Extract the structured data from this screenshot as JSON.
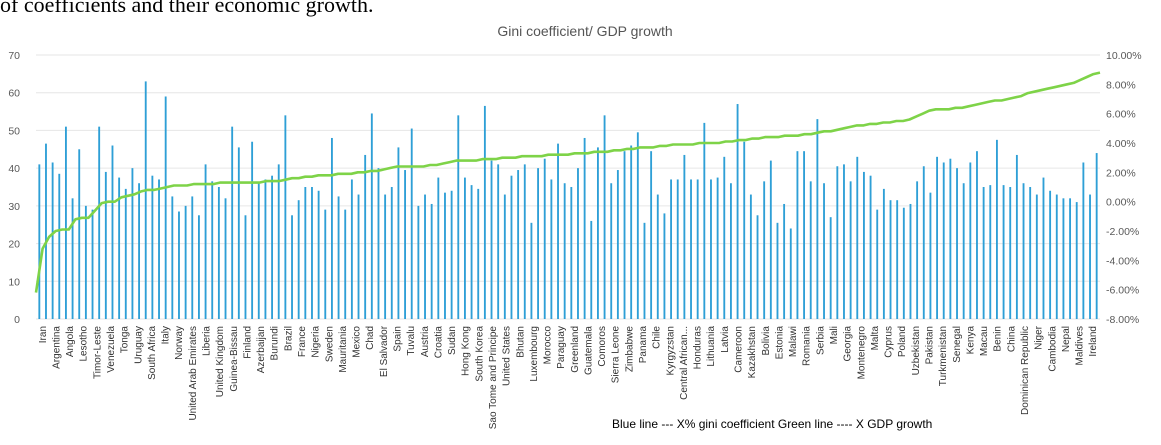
{
  "caption_fragment": "of coefficients and their economic growth.",
  "chart_data": {
    "type": "bar",
    "title": "Gini coefficient/ GDP growth",
    "annotation": "Blue line ---  X% gini coefficient  Green line ---- X GDP growth",
    "y_left": {
      "ticks": [
        0,
        10,
        20,
        30,
        40,
        50,
        60,
        70
      ],
      "range": [
        0,
        70
      ]
    },
    "y_right": {
      "ticks": [
        "-8.00%",
        "-6.00%",
        "-4.00%",
        "-2.00%",
        "0.00%",
        "2.00%",
        "4.00%",
        "6.00%",
        "8.00%",
        "10.00%"
      ],
      "range": [
        -8,
        10
      ]
    },
    "labeled_categories": [
      "Iran",
      "Argentina",
      "Angola",
      "Lesotho",
      "Timor-Leste",
      "Venezuela",
      "Tonga",
      "Uruguay",
      "South Africa",
      "Italy",
      "Norway",
      "United Arab Emirates",
      "Liberia",
      "United Kingdom",
      "Guinea-Bissau",
      "Finland",
      "Azerbaijan",
      "Burundi",
      "Brazil",
      "France",
      "Nigeria",
      "Sweden",
      "Mauritania",
      "Mexico",
      "Chad",
      "El Salvador",
      "Spain",
      "Tuvalu",
      "Austria",
      "Croatia",
      "Sudan",
      "Hong Kong",
      "South Korea",
      "Sao Tome and Principe",
      "United States",
      "Bhutan",
      "Luxembourg",
      "Morocco",
      "Paraguay",
      "Greenland",
      "Guatemala",
      "Comoros",
      "Sierra Leone",
      "Zimbabwe",
      "Panama",
      "Chile",
      "Kyrgyzstan",
      "Central African...",
      "Honduras",
      "Lithuania",
      "Latvia",
      "Cameroon",
      "Kazakhstan",
      "Bolivia",
      "Estonia",
      "Malawi",
      "Romania",
      "Serbia",
      "Mali",
      "Georgia",
      "Montenegro",
      "Malta",
      "Cyprus",
      "Poland",
      "Uzbekistan",
      "Pakistan",
      "Turkmenistan",
      "Senegal",
      "Kenya",
      "Macau",
      "Benin",
      "China",
      "Dominican Republic",
      "Niger",
      "Cambodia",
      "Nepal",
      "Maldives",
      "Ireland"
    ],
    "gini_values": [
      41,
      46.5,
      41.5,
      38.5,
      51,
      32,
      45,
      30,
      29,
      51,
      39,
      46,
      37.5,
      34.5,
      40,
      36,
      63,
      38,
      37,
      59,
      32.5,
      28.5,
      30,
      32.5,
      27.5,
      41,
      36.5,
      35,
      32,
      51,
      45.5,
      27.5,
      47,
      36,
      37,
      38,
      41,
      54,
      27.5,
      31.5,
      35,
      35,
      34,
      29,
      48,
      32.5,
      29,
      37,
      33,
      43.5,
      54.5,
      40,
      33,
      35,
      45.5,
      39.5,
      50.5,
      30,
      33,
      30.5,
      37.5,
      33.5,
      34,
      54,
      37.5,
      35.5,
      34.5,
      56.5,
      42,
      41,
      33,
      38,
      39.5,
      41,
      25.5,
      40,
      42.5,
      37,
      46.5,
      36,
      35,
      40,
      48,
      26,
      45.5,
      54,
      36,
      39.5,
      44.5,
      46,
      49.5,
      25.5,
      44.5,
      33,
      28,
      37,
      37,
      43.5,
      37,
      37,
      52,
      37,
      37.5,
      43,
      36,
      57,
      47,
      33,
      27.5,
      36.5,
      42,
      25.5,
      30.5,
      24,
      44.5,
      44.5,
      36.5,
      53,
      36,
      27,
      40.5,
      41,
      36.5,
      43,
      39,
      38,
      29,
      34.5,
      31.5,
      31.5,
      29.5,
      30.5,
      36.5,
      40.5,
      33.5,
      43,
      41.5,
      42.5,
      40,
      36,
      41.5,
      44.5,
      35,
      35.5,
      47.5,
      35.5,
      35,
      43.5,
      36,
      35,
      33,
      37.5,
      34,
      33,
      32,
      32,
      31,
      41.5,
      33,
      44
    ],
    "gdp_growth_pct": [
      -6.2,
      -3.2,
      -2.4,
      -2.0,
      -1.9,
      -1.9,
      -1.2,
      -1.1,
      -1.1,
      -0.6,
      -0.1,
      0.0,
      0.0,
      0.3,
      0.4,
      0.5,
      0.7,
      0.8,
      0.8,
      0.9,
      1.0,
      1.1,
      1.1,
      1.1,
      1.2,
      1.2,
      1.2,
      1.2,
      1.3,
      1.3,
      1.3,
      1.3,
      1.3,
      1.3,
      1.3,
      1.4,
      1.4,
      1.4,
      1.5,
      1.6,
      1.6,
      1.7,
      1.7,
      1.8,
      1.8,
      1.8,
      1.9,
      1.9,
      1.9,
      2.0,
      2.0,
      2.1,
      2.1,
      2.2,
      2.3,
      2.4,
      2.4,
      2.4,
      2.4,
      2.4,
      2.5,
      2.5,
      2.6,
      2.7,
      2.8,
      2.8,
      2.8,
      2.8,
      2.9,
      2.9,
      2.9,
      3.0,
      3.0,
      3.0,
      3.1,
      3.1,
      3.1,
      3.1,
      3.2,
      3.2,
      3.2,
      3.2,
      3.3,
      3.3,
      3.3,
      3.4,
      3.4,
      3.4,
      3.5,
      3.5,
      3.6,
      3.6,
      3.7,
      3.7,
      3.7,
      3.8,
      3.8,
      3.9,
      3.9,
      3.9,
      3.9,
      4.0,
      4.0,
      4.0,
      4.0,
      4.1,
      4.1,
      4.2,
      4.2,
      4.3,
      4.3,
      4.4,
      4.4,
      4.4,
      4.5,
      4.5,
      4.5,
      4.6,
      4.6,
      4.7,
      4.8,
      4.8,
      4.9,
      5.0,
      5.1,
      5.2,
      5.2,
      5.3,
      5.3,
      5.4,
      5.4,
      5.5,
      5.5,
      5.6,
      5.8,
      6.0,
      6.2,
      6.3,
      6.3,
      6.3,
      6.4,
      6.4,
      6.5,
      6.6,
      6.7,
      6.8,
      6.9,
      6.9,
      7.0,
      7.1,
      7.2,
      7.4,
      7.5,
      7.6,
      7.7,
      7.8,
      7.9,
      8.0,
      8.1,
      8.3,
      8.5,
      8.7,
      8.8
    ],
    "bar_color": "#2e9fd6",
    "line_color": "#7ed348",
    "grid": true,
    "legend": "none"
  }
}
